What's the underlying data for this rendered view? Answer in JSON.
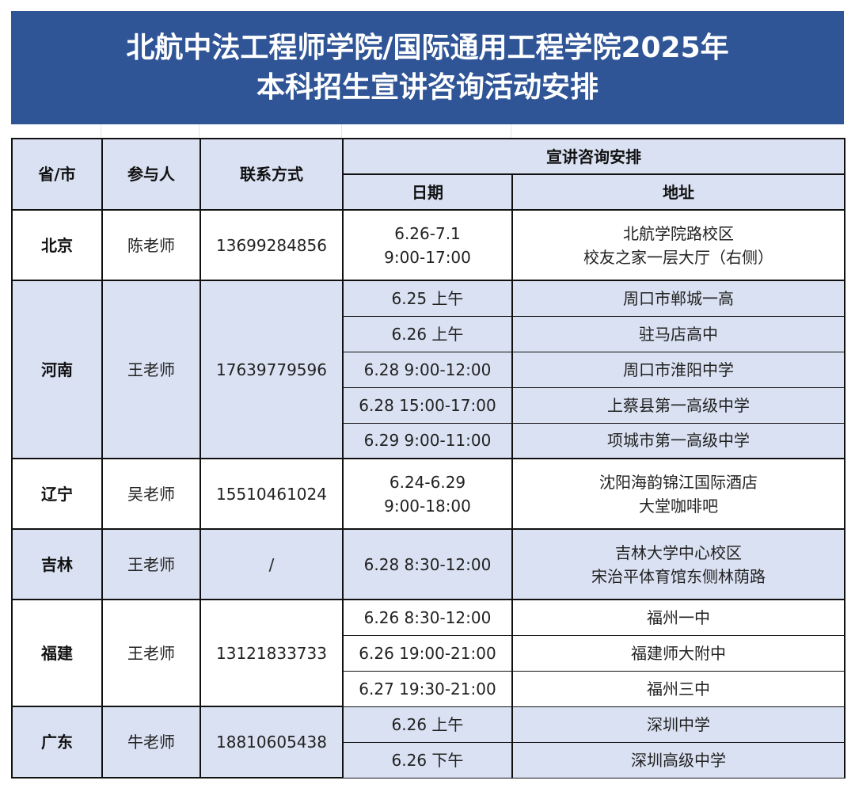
{
  "title": {
    "line1": "北航中法工程师学院/国际通用工程学院2025年",
    "line2": "本科招生宣讲咨询活动安排"
  },
  "headers": {
    "province": "省/市",
    "person": "参与人",
    "contact": "联系方式",
    "schedule": "宣讲咨询安排",
    "date": "日期",
    "address": "地址"
  },
  "colors": {
    "title_bg": "#2F5597",
    "band_bg": "#D9E1F2"
  },
  "rows": [
    {
      "province": "北京",
      "person": "陈老师",
      "contact": "13699284856",
      "sessions": [
        {
          "date": [
            "6.26-7.1",
            "9:00-17:00"
          ],
          "address": [
            "北航学院路校区",
            "校友之家一层大厅（右侧）"
          ]
        }
      ]
    },
    {
      "province": "河南",
      "person": "王老师",
      "contact": "17639779596",
      "sessions": [
        {
          "date": [
            "6.25 上午"
          ],
          "address": [
            "周口市郸城一高"
          ]
        },
        {
          "date": [
            "6.26 上午"
          ],
          "address": [
            "驻马店高中"
          ]
        },
        {
          "date": [
            "6.28 9:00-12:00"
          ],
          "address": [
            "周口市淮阳中学"
          ]
        },
        {
          "date": [
            "6.28 15:00-17:00"
          ],
          "address": [
            "上蔡县第一高级中学"
          ]
        },
        {
          "date": [
            "6.29 9:00-11:00"
          ],
          "address": [
            "项城市第一高级中学"
          ]
        }
      ]
    },
    {
      "province": "辽宁",
      "person": "吴老师",
      "contact": "15510461024",
      "sessions": [
        {
          "date": [
            "6.24-6.29",
            "9:00-18:00"
          ],
          "address": [
            "沈阳海韵锦江国际酒店",
            "大堂咖啡吧"
          ]
        }
      ]
    },
    {
      "province": "吉林",
      "person": "王老师",
      "contact": "/",
      "sessions": [
        {
          "date": [
            "6.28 8:30-12:00"
          ],
          "address": [
            "吉林大学中心校区",
            "宋治平体育馆东侧林荫路"
          ]
        }
      ]
    },
    {
      "province": "福建",
      "person": "王老师",
      "contact": "13121833733",
      "sessions": [
        {
          "date": [
            "6.26 8:30-12:00"
          ],
          "address": [
            "福州一中"
          ]
        },
        {
          "date": [
            "6.26 19:00-21:00"
          ],
          "address": [
            "福建师大附中"
          ]
        },
        {
          "date": [
            "6.27 19:30-21:00"
          ],
          "address": [
            "福州三中"
          ]
        }
      ]
    },
    {
      "province": "广东",
      "person": "牛老师",
      "contact": "18810605438",
      "sessions": [
        {
          "date": [
            "6.26 上午"
          ],
          "address": [
            "深圳中学"
          ]
        },
        {
          "date": [
            "6.26 下午"
          ],
          "address": [
            "深圳高级中学"
          ]
        }
      ]
    }
  ]
}
